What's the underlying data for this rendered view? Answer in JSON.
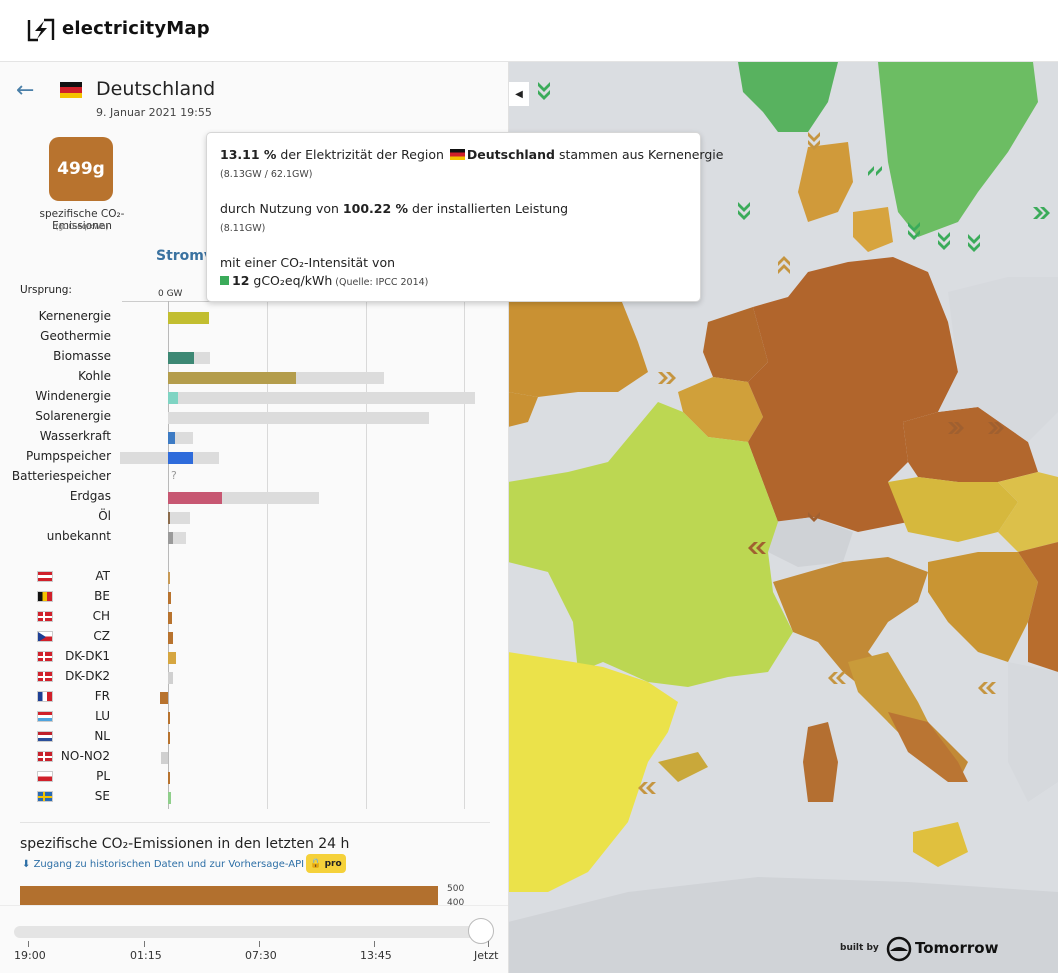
{
  "app": {
    "title": "electricityMap"
  },
  "zone": {
    "name": "Deutschland",
    "date": "9. Januar 2021 19:55"
  },
  "co2": {
    "value": "499g",
    "label": "spezifische CO₂-Emissionen",
    "unit": "(gCO₂eq/kWh)",
    "color": "#b8732e"
  },
  "section": {
    "title": "Stromv"
  },
  "chart": {
    "origin_label": "Ursprung:",
    "axis_zero": "0 GW",
    "sources": [
      {
        "label": "Kernenergie",
        "value": 8.13,
        "capacity": 8.11,
        "color": "#c2be30"
      },
      {
        "label": "Geothermie",
        "value": 0,
        "capacity": 0,
        "color": "#bbbbbb"
      },
      {
        "label": "Biomasse",
        "value": 5.2,
        "capacity": 8.4,
        "color": "#3d8874"
      },
      {
        "label": "Kohle",
        "value": 25.6,
        "capacity": 43.2,
        "color": "#b49d4c"
      },
      {
        "label": "Windenergie",
        "value": 2.0,
        "capacity": 62.3,
        "color": "#7fd4c3"
      },
      {
        "label": "Solarenergie",
        "value": 0,
        "capacity": 52.2,
        "color": "#f3d44a"
      },
      {
        "label": "Wasserkraft",
        "value": 1.4,
        "capacity": 5.0,
        "color": "#3d7bc4"
      },
      {
        "label": "Pumpspeicher",
        "value": 5.0,
        "capacity": 10.2,
        "neg_capacity": 9.6,
        "color": "#2e6bdb"
      },
      {
        "label": "Batteriespeicher",
        "value": null,
        "unknown": "?",
        "color": "#bbbbbb"
      },
      {
        "label": "Erdgas",
        "value": 10.8,
        "capacity": 30.1,
        "color": "#c75772"
      },
      {
        "label": "Öl",
        "value": 0.4,
        "capacity": 4.4,
        "color": "#8b6b4b"
      },
      {
        "label": "unbekannt",
        "value": 0.9,
        "capacity": 3.6,
        "color": "#9a9a9a"
      }
    ],
    "exchanges": [
      {
        "code": "AT",
        "flag": "at",
        "value": 0.2,
        "color": "#c89a55"
      },
      {
        "code": "BE",
        "flag": "be",
        "value": 0.6,
        "color": "#b8732e"
      },
      {
        "code": "CH",
        "flag": "ch",
        "value": 0.8,
        "color": "#b8732e"
      },
      {
        "code": "CZ",
        "flag": "cz",
        "value": 1.0,
        "color": "#b8732e"
      },
      {
        "code": "DK-DK1",
        "flag": "dk",
        "value": 1.6,
        "color": "#d6a640"
      },
      {
        "code": "DK-DK2",
        "flag": "dk",
        "value": 1.0,
        "color": "#d0d0d0"
      },
      {
        "code": "FR",
        "flag": "fr",
        "value": -1.6,
        "color": "#b8732e"
      },
      {
        "code": "LU",
        "flag": "lu",
        "value": 0.3,
        "color": "#b8732e"
      },
      {
        "code": "NL",
        "flag": "nl",
        "value": 0.2,
        "color": "#b8732e"
      },
      {
        "code": "NO-NO2",
        "flag": "no",
        "value": -1.4,
        "color": "#d0d0d0"
      },
      {
        "code": "PL",
        "flag": "pl",
        "value": 0.4,
        "color": "#b8732e"
      },
      {
        "code": "SE",
        "flag": "se",
        "value": 0.6,
        "color": "#8fcf8b"
      }
    ]
  },
  "history": {
    "title": "spezifische CO₂-Emissionen in den letzten 24 h",
    "link": "Zugang zu historischen Daten und zur Vorhersage-API",
    "pro_label": "pro",
    "y_ticks": [
      "500",
      "400"
    ]
  },
  "timeline": {
    "labels": [
      "19:00",
      "01:15",
      "07:30",
      "13:45",
      "Jetzt"
    ]
  },
  "tooltip": {
    "p1_pct": "13.11 %",
    "p1_text_a": " der Elektrizität der Region ",
    "p1_zone": "Deutschland",
    "p1_text_b": " stammen aus Kernenergie",
    "p1_detail": "(8.13GW / 62.1GW)",
    "p2_text_a": "durch Nutzung von ",
    "p2_pct": "100.22 %",
    "p2_text_b": " der installierten Leistung",
    "p2_detail": "(8.11GW)",
    "p3_text": "mit einer CO₂-Intensität von",
    "p3_value": "12",
    "p3_unit": " gCO₂eq/kWh",
    "p3_source": " (Quelle: IPCC 2014)",
    "square_color": "#3bab5a"
  },
  "footer": {
    "built_by": "built by",
    "brand": "Tomorrow"
  }
}
